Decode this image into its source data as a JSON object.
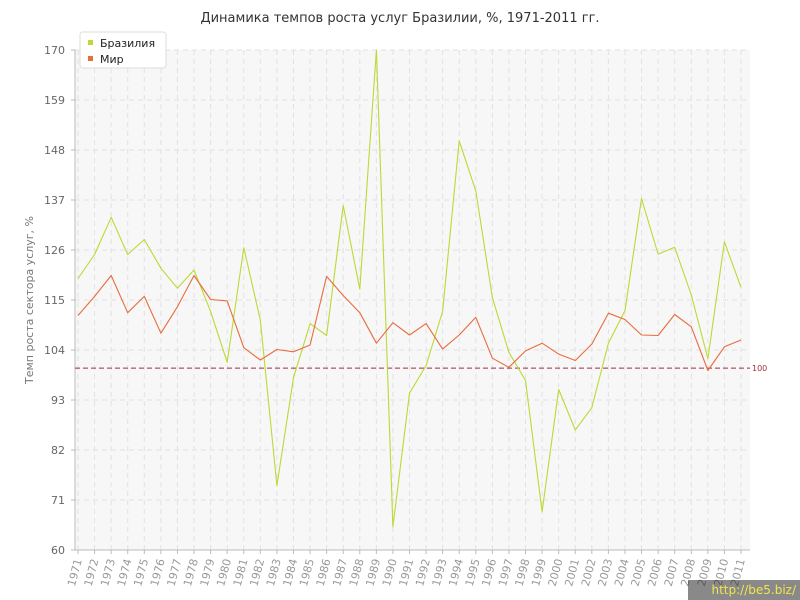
{
  "watermark": "http://be5.biz/",
  "colors": {
    "brazil": "#bcd934",
    "world": "#e86c3e",
    "reference": "#a03040",
    "plot_bg": "#f7f7f7",
    "grid": "#e2e2e2"
  },
  "chart_data": {
    "type": "line",
    "title": "Динамика темпов роста услуг Бразилии, %, 1971-2011 гг.",
    "xlabel": "",
    "ylabel": "Темп роста сектора услуг, %",
    "ylim": [
      60,
      170
    ],
    "yticks": [
      60,
      71,
      82,
      93,
      104,
      115,
      126,
      137,
      148,
      159,
      170
    ],
    "grid": true,
    "legend_position": "top-left",
    "x": [
      "1971",
      "1972",
      "1973",
      "1974",
      "1975",
      "1976",
      "1977",
      "1978",
      "1979",
      "1980",
      "1981",
      "1982",
      "1983",
      "1984",
      "1985",
      "1986",
      "1987",
      "1988",
      "1989",
      "1990",
      "1991",
      "1992",
      "1993",
      "1994",
      "1995",
      "1996",
      "1997",
      "1998",
      "1999",
      "2000",
      "2001",
      "2002",
      "2003",
      "2004",
      "2005",
      "2006",
      "2007",
      "2008",
      "2009",
      "2010",
      "2011"
    ],
    "series": [
      {
        "name": "Бразилия",
        "color": "#bcd934",
        "values": [
          119.7,
          125,
          133.2,
          125,
          128.3,
          122,
          117.6,
          121.6,
          112.5,
          101.3,
          126.5,
          110.6,
          74.2,
          97.9,
          109.8,
          107.2,
          135.8,
          117.4,
          170,
          65.1,
          94.5,
          100.6,
          112.5,
          150,
          139,
          115.5,
          103.5,
          97.3,
          68.4,
          95.3,
          86.4,
          91.3,
          105.5,
          112.7,
          137.3,
          125.1,
          126.6,
          116.1,
          102.1,
          127.8,
          117.8
        ]
      },
      {
        "name": "Мир",
        "color": "#e86c3e",
        "values": [
          111.6,
          115.8,
          120.4,
          112.2,
          115.8,
          107.7,
          113.5,
          120.4,
          115.1,
          114.8,
          104.5,
          101.8,
          104.1,
          103.6,
          105.1,
          120.2,
          116,
          112.2,
          105.5,
          110,
          107.3,
          109.8,
          104.2,
          107.3,
          111.2,
          102.2,
          100.2,
          103.8,
          105.5,
          103.1,
          101.7,
          105.3,
          112.1,
          110.7,
          107.3,
          107.2,
          111.8,
          109.1,
          99.5,
          104.7,
          106.2
        ]
      }
    ],
    "reference_line": {
      "value": 100,
      "label": "100"
    }
  }
}
